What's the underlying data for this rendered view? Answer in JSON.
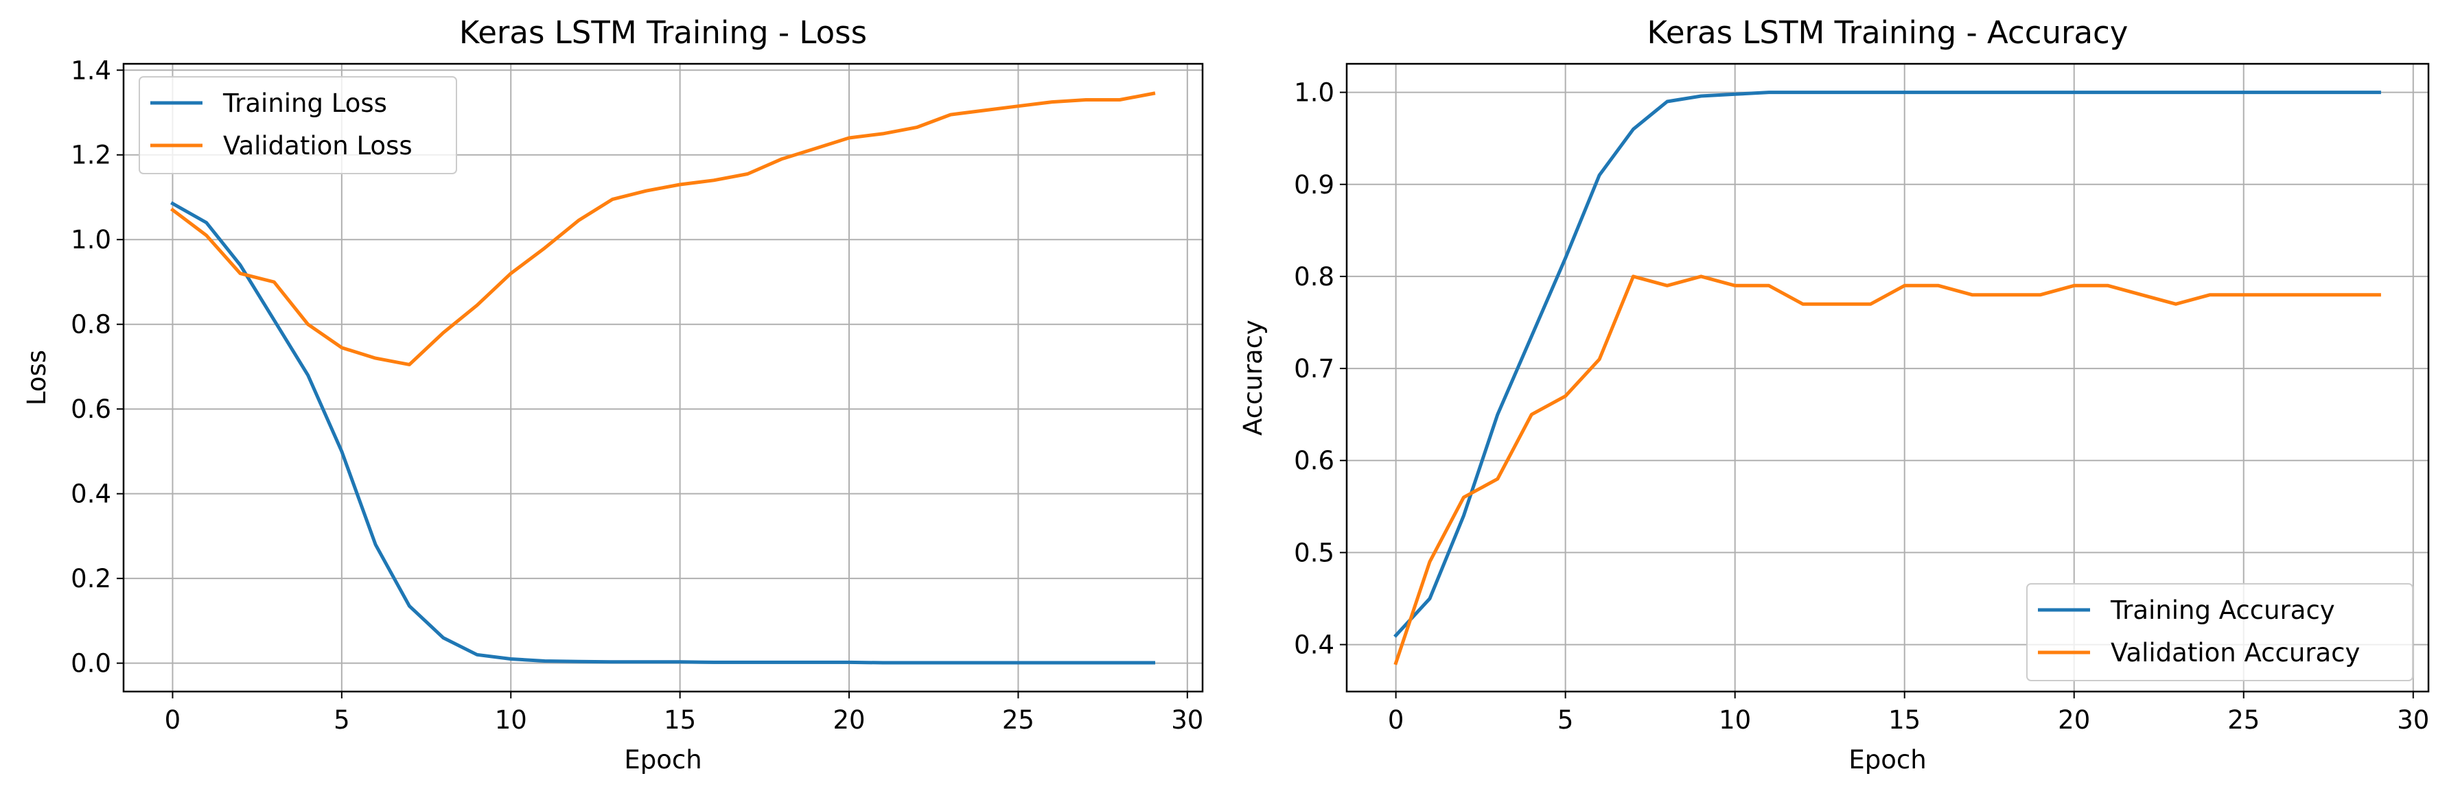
{
  "chart_data": [
    {
      "type": "line",
      "title": "Keras LSTM Training - Loss",
      "xlabel": "Epoch",
      "ylabel": "Loss",
      "xlim": [
        -1.45,
        30.45
      ],
      "ylim": [
        -0.067,
        1.415
      ],
      "xticks": [
        0,
        5,
        10,
        15,
        20,
        25,
        30
      ],
      "yticks": [
        0.0,
        0.2,
        0.4,
        0.6,
        0.8,
        1.0,
        1.2,
        1.4
      ],
      "tick_decimals": 1,
      "grid": true,
      "legend_position": "upper-left",
      "x": [
        0,
        1,
        2,
        3,
        4,
        5,
        6,
        7,
        8,
        9,
        10,
        11,
        12,
        13,
        14,
        15,
        16,
        17,
        18,
        19,
        20,
        21,
        22,
        23,
        24,
        25,
        26,
        27,
        28,
        29
      ],
      "series": [
        {
          "name": "Training Loss",
          "color": "#1f77b4",
          "values": [
            1.085,
            1.04,
            0.94,
            0.81,
            0.68,
            0.5,
            0.28,
            0.135,
            0.06,
            0.02,
            0.01,
            0.005,
            0.004,
            0.003,
            0.003,
            0.003,
            0.002,
            0.002,
            0.002,
            0.002,
            0.002,
            0.001,
            0.001,
            0.001,
            0.001,
            0.001,
            0.001,
            0.001,
            0.001,
            0.001
          ]
        },
        {
          "name": "Validation Loss",
          "color": "#ff7f0e",
          "values": [
            1.07,
            1.01,
            0.92,
            0.9,
            0.8,
            0.745,
            0.72,
            0.705,
            0.78,
            0.845,
            0.92,
            0.98,
            1.045,
            1.095,
            1.115,
            1.13,
            1.14,
            1.155,
            1.19,
            1.215,
            1.24,
            1.25,
            1.265,
            1.295,
            1.305,
            1.315,
            1.325,
            1.33,
            1.33,
            1.345
          ]
        }
      ]
    },
    {
      "type": "line",
      "title": "Keras LSTM Training - Accuracy",
      "xlabel": "Epoch",
      "ylabel": "Accuracy",
      "xlim": [
        -1.45,
        30.45
      ],
      "ylim": [
        0.349,
        1.031
      ],
      "xticks": [
        0,
        5,
        10,
        15,
        20,
        25,
        30
      ],
      "yticks": [
        0.4,
        0.5,
        0.6,
        0.7,
        0.8,
        0.9,
        1.0
      ],
      "tick_decimals": 1,
      "grid": true,
      "legend_position": "lower-right",
      "x": [
        0,
        1,
        2,
        3,
        4,
        5,
        6,
        7,
        8,
        9,
        10,
        11,
        12,
        13,
        14,
        15,
        16,
        17,
        18,
        19,
        20,
        21,
        22,
        23,
        24,
        25,
        26,
        27,
        28,
        29
      ],
      "series": [
        {
          "name": "Training Accuracy",
          "color": "#1f77b4",
          "values": [
            0.41,
            0.45,
            0.54,
            0.65,
            0.735,
            0.82,
            0.91,
            0.96,
            0.99,
            0.996,
            0.998,
            1.0,
            1.0,
            1.0,
            1.0,
            1.0,
            1.0,
            1.0,
            1.0,
            1.0,
            1.0,
            1.0,
            1.0,
            1.0,
            1.0,
            1.0,
            1.0,
            1.0,
            1.0,
            1.0
          ]
        },
        {
          "name": "Validation Accuracy",
          "color": "#ff7f0e",
          "values": [
            0.38,
            0.49,
            0.56,
            0.58,
            0.65,
            0.67,
            0.71,
            0.8,
            0.79,
            0.8,
            0.79,
            0.79,
            0.77,
            0.77,
            0.77,
            0.79,
            0.79,
            0.78,
            0.78,
            0.78,
            0.79,
            0.79,
            0.78,
            0.77,
            0.78,
            0.78,
            0.78,
            0.78,
            0.78,
            0.78
          ]
        }
      ]
    }
  ]
}
